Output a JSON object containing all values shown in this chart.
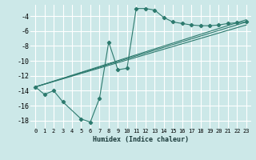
{
  "xlabel": "Humidex (Indice chaleur)",
  "bg_color": "#cce8e8",
  "grid_color": "#ffffff",
  "line_color": "#2d7a6e",
  "xlim": [
    -0.5,
    23.5
  ],
  "ylim": [
    -19,
    -2.5
  ],
  "xticks": [
    0,
    1,
    2,
    3,
    4,
    5,
    6,
    7,
    8,
    9,
    10,
    11,
    12,
    13,
    14,
    15,
    16,
    17,
    18,
    19,
    20,
    21,
    22,
    23
  ],
  "yticks": [
    -18,
    -16,
    -14,
    -12,
    -10,
    -8,
    -6,
    -4
  ],
  "main_series": {
    "x": [
      0,
      1,
      2,
      3,
      5,
      6,
      7,
      8,
      9,
      10,
      11,
      12,
      13,
      14,
      15,
      16,
      17,
      18,
      19,
      20,
      21,
      22,
      23
    ],
    "y": [
      -13.5,
      -14.5,
      -14.0,
      -15.5,
      -17.8,
      -18.2,
      -15.0,
      -7.5,
      -11.2,
      -11.0,
      -3.0,
      -3.0,
      -3.2,
      -4.2,
      -4.8,
      -5.0,
      -5.2,
      -5.3,
      -5.3,
      -5.2,
      -5.0,
      -4.9,
      -4.8
    ]
  },
  "straight_lines": [
    {
      "x": [
        0,
        23
      ],
      "y": [
        -13.5,
        -4.5
      ]
    },
    {
      "x": [
        0,
        23
      ],
      "y": [
        -13.5,
        -4.8
      ]
    },
    {
      "x": [
        0,
        23
      ],
      "y": [
        -13.5,
        -5.2
      ]
    }
  ]
}
